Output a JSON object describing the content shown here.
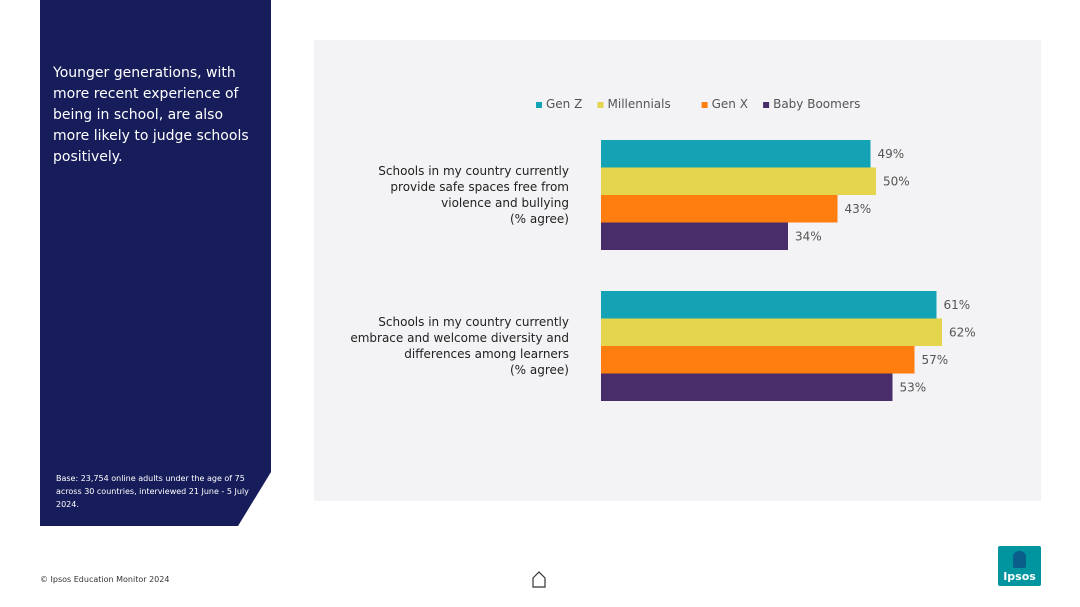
{
  "side_panel": {
    "headline": "Younger generations, with more recent experience of being in school, are also more likely to judge schools positively.",
    "base_note": "Base: 23,754 online adults under the age of 75 across 30 countries, interviewed 21 June - 5 July 2024."
  },
  "footer": {
    "copyright": "© Ipsos Education Monitor 2024",
    "logo_text": "Ipsos"
  },
  "colors": {
    "panel_bg": "#171d5a",
    "gen_z": "#13a3b4",
    "millennials": "#e4d44e",
    "gen_x": "#ff7e0f",
    "baby_boomers": "#492d6b"
  },
  "chart_data": {
    "type": "bar",
    "orientation": "horizontal",
    "legend_position": "top",
    "grid": false,
    "categories": [
      [
        "Schools in my country currently",
        "provide safe spaces free from",
        "violence and bullying",
        "(% agree)"
      ],
      [
        "Schools in my country currently",
        "embrace and welcome diversity and",
        "differences among learners",
        "(% agree)"
      ]
    ],
    "series": [
      {
        "name": "Gen Z",
        "color": "#13a3b4",
        "values": [
          49,
          61
        ],
        "labels": [
          "49%",
          "61%"
        ]
      },
      {
        "name": "Millennials",
        "color": "#e4d44e",
        "values": [
          50,
          62
        ],
        "labels": [
          "50%",
          "62%"
        ]
      },
      {
        "name": "Gen X",
        "color": "#ff7e0f",
        "values": [
          43,
          57
        ],
        "labels": [
          "43%",
          "57%"
        ]
      },
      {
        "name": "Baby Boomers",
        "color": "#492d6b",
        "values": [
          34,
          53
        ],
        "labels": [
          "34%",
          "53%"
        ]
      }
    ],
    "xlim": [
      0,
      100
    ]
  }
}
